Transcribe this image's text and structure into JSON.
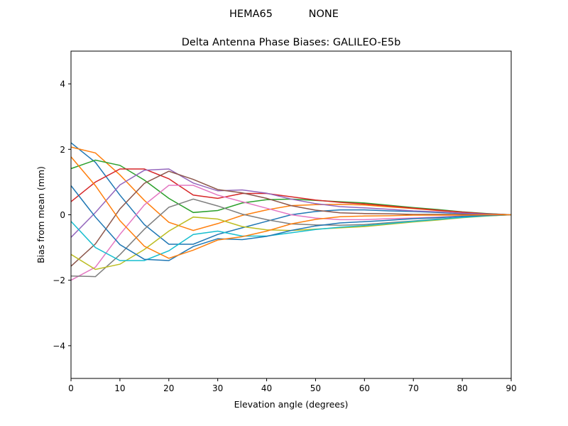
{
  "chart_data": {
    "type": "line",
    "suptitle": "HEMA65           NONE",
    "title": "Delta Antenna Phase Biases: GALILEO-E5b",
    "xlabel": "Elevation angle (degrees)",
    "ylabel": "Bias from mean (mm)",
    "xlim": [
      0,
      90
    ],
    "ylim": [
      -5,
      5
    ],
    "xticks": [
      0,
      10,
      20,
      30,
      40,
      50,
      60,
      70,
      80,
      90
    ],
    "xtick_labels": [
      "0",
      "10",
      "20",
      "30",
      "40",
      "50",
      "60",
      "70",
      "80",
      "90"
    ],
    "yticks": [
      -4,
      -2,
      0,
      2,
      4
    ],
    "ytick_labels": [
      "−4",
      "−2",
      "0",
      "2",
      "4"
    ],
    "grid": false,
    "colors": [
      "#1f77b4",
      "#ff7f0e",
      "#2ca02c",
      "#d62728",
      "#9467bd",
      "#8c564b",
      "#e377c2",
      "#7f7f7f",
      "#bcbd22",
      "#17becf"
    ],
    "x": [
      0,
      5,
      10,
      15,
      20,
      25,
      30,
      35,
      40,
      45,
      50,
      55,
      60,
      65,
      70,
      75,
      80,
      85,
      90
    ],
    "series": [
      {
        "values": [
          2.2,
          1.6,
          0.6,
          -0.3,
          -0.9,
          -0.9,
          -0.6,
          -0.4,
          -0.2,
          0,
          0.1,
          0.15,
          0.15,
          0.12,
          0.1,
          0.07,
          0.04,
          0.02,
          0
        ]
      },
      {
        "values": [
          2.07,
          1.89,
          1.22,
          0.44,
          -0.23,
          -0.48,
          -0.27,
          -0.02,
          0.15,
          0.28,
          0.31,
          0.32,
          0.3,
          0.24,
          0.19,
          0.13,
          0.08,
          0.03,
          0
        ]
      },
      {
        "values": [
          1.41,
          1.67,
          1.51,
          1.06,
          0.5,
          0.07,
          0.13,
          0.36,
          0.46,
          0.48,
          0.44,
          0.4,
          0.36,
          0.29,
          0.22,
          0.16,
          0.09,
          0.04,
          0
        ]
      },
      {
        "values": [
          0.4,
          1.0,
          1.4,
          1.4,
          1.1,
          0.6,
          0.5,
          0.65,
          0.65,
          0.55,
          0.45,
          0.38,
          0.33,
          0.27,
          0.2,
          0.14,
          0.08,
          0.03,
          0
        ]
      },
      {
        "values": [
          -0.69,
          0.07,
          0.91,
          1.36,
          1.4,
          0.97,
          0.73,
          0.76,
          0.66,
          0.48,
          0.34,
          0.25,
          0.21,
          0.17,
          0.12,
          0.09,
          0.05,
          0.02,
          0
        ]
      },
      {
        "values": [
          -1.57,
          -0.89,
          0.18,
          0.96,
          1.33,
          1.08,
          0.77,
          0.67,
          0.5,
          0.28,
          0.14,
          0.06,
          0.04,
          0.03,
          0.01,
          0.01,
          0.01,
          0,
          0
        ]
      },
      {
        "values": [
          -2.0,
          -1.6,
          -0.6,
          0.3,
          0.9,
          0.9,
          0.6,
          0.4,
          0.2,
          0,
          -0.1,
          -0.15,
          -0.15,
          -0.12,
          -0.1,
          -0.07,
          -0.04,
          -0.02,
          0
        ]
      },
      {
        "values": [
          -1.87,
          -1.89,
          -1.22,
          -0.44,
          0.23,
          0.48,
          0.27,
          0.02,
          -0.15,
          -0.28,
          -0.31,
          -0.32,
          -0.3,
          -0.24,
          -0.19,
          -0.13,
          -0.08,
          -0.03,
          0
        ]
      },
      {
        "values": [
          -1.21,
          -1.67,
          -1.51,
          -1.06,
          -0.5,
          -0.07,
          -0.13,
          -0.36,
          -0.46,
          -0.48,
          -0.44,
          -0.4,
          -0.36,
          -0.29,
          -0.22,
          -0.16,
          -0.09,
          -0.04,
          0
        ]
      },
      {
        "values": [
          -0.2,
          -1.0,
          -1.4,
          -1.4,
          -1.1,
          -0.6,
          -0.5,
          -0.65,
          -0.65,
          -0.55,
          -0.45,
          -0.38,
          -0.33,
          -0.27,
          -0.2,
          -0.14,
          -0.08,
          -0.03,
          0
        ]
      },
      {
        "values": [
          0.89,
          -0.07,
          -0.91,
          -1.36,
          -1.4,
          -0.97,
          -0.73,
          -0.76,
          -0.66,
          -0.48,
          -0.34,
          -0.25,
          -0.21,
          -0.17,
          -0.12,
          -0.09,
          -0.05,
          -0.02,
          0
        ]
      },
      {
        "values": [
          1.77,
          0.89,
          -0.18,
          -0.96,
          -1.33,
          -1.08,
          -0.77,
          -0.67,
          -0.5,
          -0.28,
          -0.14,
          -0.06,
          -0.04,
          -0.03,
          -0.01,
          -0.01,
          -0.01,
          0,
          0
        ]
      }
    ]
  }
}
